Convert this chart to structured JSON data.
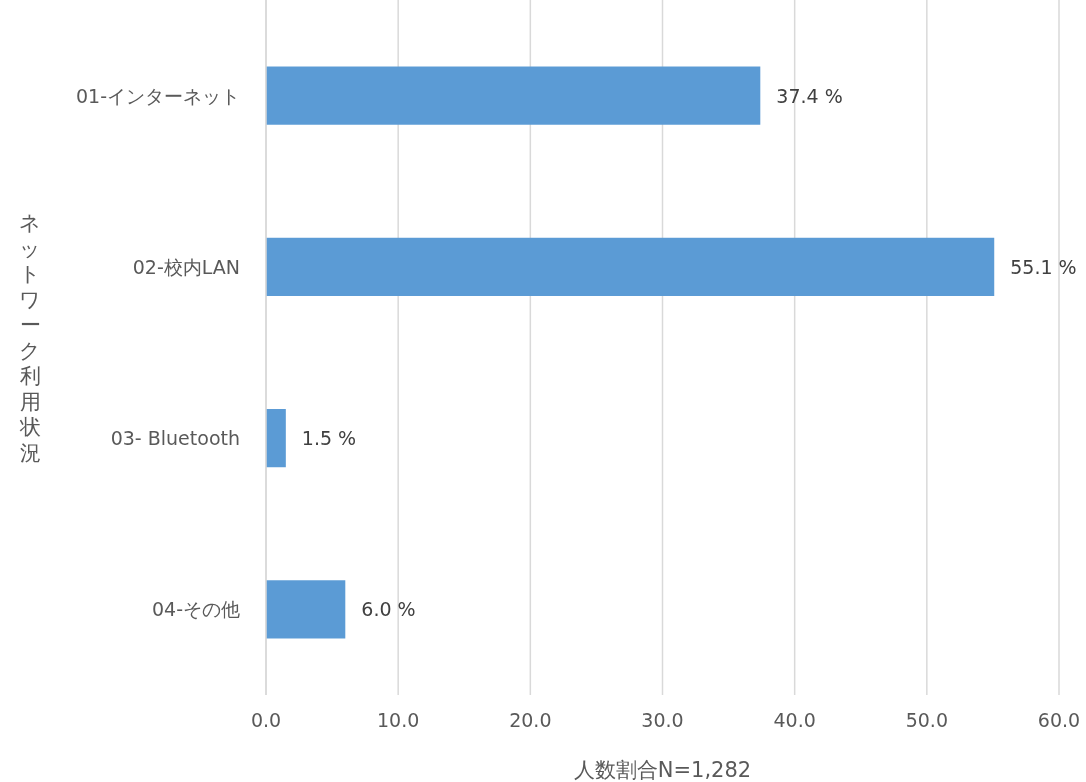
{
  "chart_data": {
    "type": "bar",
    "orientation": "horizontal",
    "categories": [
      "01-インターネット",
      "02-校内LAN",
      "03- Bluetooth",
      "04-その他"
    ],
    "values": [
      37.4,
      55.1,
      1.5,
      6.0
    ],
    "value_labels": [
      "37.4 %",
      "55.1 %",
      "1.5 %",
      "6.0 %"
    ],
    "color": "#5b9bd5",
    "xlim": [
      0,
      60
    ],
    "xticks": [
      {
        "value": 0,
        "label": "0.0"
      },
      {
        "value": 10,
        "label": "10.0"
      },
      {
        "value": 20,
        "label": "20.0"
      },
      {
        "value": 30,
        "label": "30.0"
      },
      {
        "value": 40,
        "label": "40.0"
      },
      {
        "value": 50,
        "label": "50.0"
      },
      {
        "value": 60,
        "label": "60.0"
      }
    ],
    "grid": "x",
    "xlabel": "人数割合N=1,282",
    "ylabel": "ネットワーク利用状況"
  }
}
